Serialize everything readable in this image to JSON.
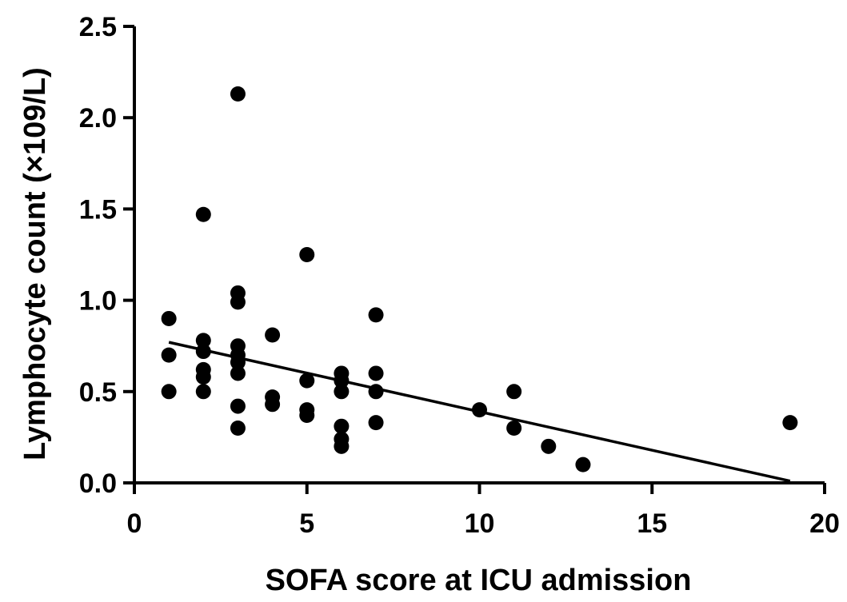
{
  "chart_data": {
    "type": "scatter",
    "title": "",
    "xlabel": "SOFA score at ICU admission",
    "ylabel": "Lymphocyte count (×109/L)",
    "xlim": [
      0,
      20
    ],
    "ylim": [
      0,
      2.5
    ],
    "x_ticks": [
      "0",
      "5",
      "10",
      "15",
      "20"
    ],
    "y_ticks": [
      "0.0",
      "0.5",
      "1.0",
      "1.5",
      "2.0",
      "2.5"
    ],
    "grid": false,
    "legend": "none",
    "points": [
      {
        "x": 1,
        "y": 0.9
      },
      {
        "x": 1,
        "y": 0.7
      },
      {
        "x": 1,
        "y": 0.5
      },
      {
        "x": 2,
        "y": 1.47
      },
      {
        "x": 2,
        "y": 0.78
      },
      {
        "x": 2,
        "y": 0.72
      },
      {
        "x": 2,
        "y": 0.62
      },
      {
        "x": 2,
        "y": 0.58
      },
      {
        "x": 2,
        "y": 0.5
      },
      {
        "x": 3,
        "y": 2.13
      },
      {
        "x": 3,
        "y": 1.04
      },
      {
        "x": 3,
        "y": 0.99
      },
      {
        "x": 3,
        "y": 0.75
      },
      {
        "x": 3,
        "y": 0.7
      },
      {
        "x": 3,
        "y": 0.66
      },
      {
        "x": 3,
        "y": 0.6
      },
      {
        "x": 3,
        "y": 0.42
      },
      {
        "x": 3,
        "y": 0.3
      },
      {
        "x": 4,
        "y": 0.81
      },
      {
        "x": 4,
        "y": 0.47
      },
      {
        "x": 4,
        "y": 0.43
      },
      {
        "x": 5,
        "y": 1.25
      },
      {
        "x": 5,
        "y": 0.56
      },
      {
        "x": 5,
        "y": 0.4
      },
      {
        "x": 5,
        "y": 0.37
      },
      {
        "x": 6,
        "y": 0.6
      },
      {
        "x": 6,
        "y": 0.56
      },
      {
        "x": 6,
        "y": 0.5
      },
      {
        "x": 6,
        "y": 0.31
      },
      {
        "x": 6,
        "y": 0.24
      },
      {
        "x": 6,
        "y": 0.2
      },
      {
        "x": 7,
        "y": 0.92
      },
      {
        "x": 7,
        "y": 0.6
      },
      {
        "x": 7,
        "y": 0.5
      },
      {
        "x": 7,
        "y": 0.33
      },
      {
        "x": 10,
        "y": 0.4
      },
      {
        "x": 11,
        "y": 0.5
      },
      {
        "x": 11,
        "y": 0.3
      },
      {
        "x": 12,
        "y": 0.2
      },
      {
        "x": 13,
        "y": 0.1
      },
      {
        "x": 19,
        "y": 0.33
      }
    ],
    "regression_line": {
      "x": [
        1,
        19
      ],
      "y": [
        0.77,
        0.01
      ]
    },
    "colors": {
      "points": "#000000",
      "line": "#000000"
    }
  }
}
